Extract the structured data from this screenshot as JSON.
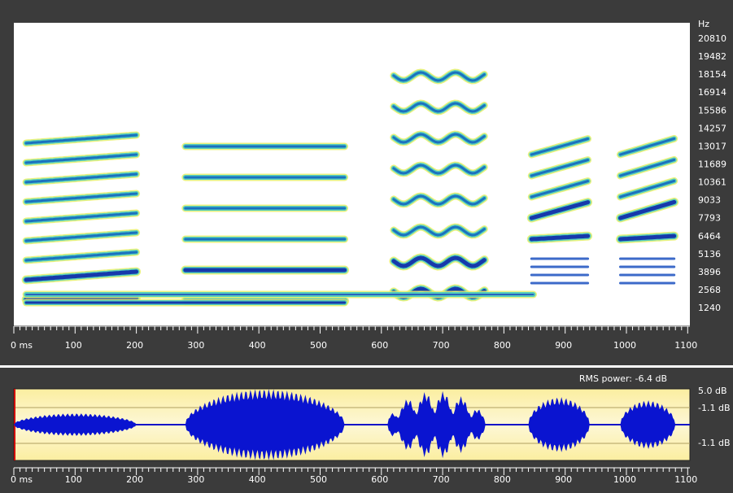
{
  "frequency_axis": {
    "unit": "Hz",
    "labels": [
      "20810",
      "19482",
      "18154",
      "16914",
      "15586",
      "14257",
      "13017",
      "11689",
      "10361",
      "9033",
      "7793",
      "6464",
      "5136",
      "3896",
      "2568",
      "1240"
    ]
  },
  "time_axis": {
    "labels": [
      "0 ms",
      "100",
      "200",
      "300",
      "400",
      "500",
      "600",
      "700",
      "800",
      "900",
      "1000",
      "1100"
    ]
  },
  "waveform": {
    "rms_label": "RMS power: -6.4 dB",
    "level_labels": [
      "5.0 dB",
      "-1.1 dB",
      "-1.1 dB"
    ]
  }
}
